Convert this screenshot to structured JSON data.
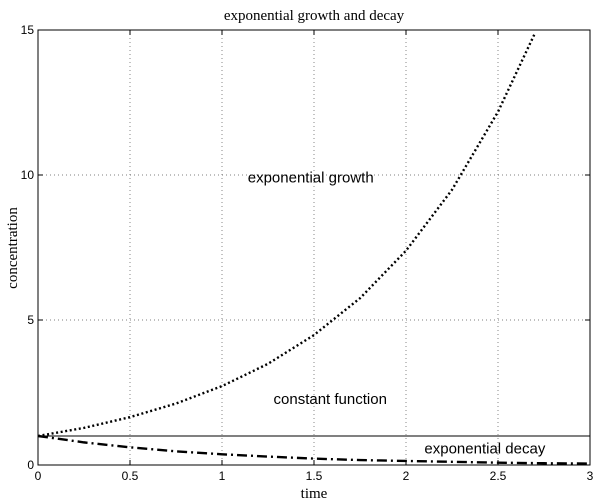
{
  "chart_data": {
    "type": "line",
    "title": "exponential growth and decay",
    "xlabel": "time",
    "ylabel": "concentration",
    "xlim": [
      0,
      3
    ],
    "ylim": [
      0,
      15
    ],
    "x_ticks": [
      0,
      0.5,
      1,
      1.5,
      2,
      2.5,
      3
    ],
    "x_tick_labels": [
      "0",
      "0.5",
      "1",
      "1.5",
      "2",
      "2.5",
      "3"
    ],
    "y_ticks": [
      0,
      5,
      10,
      15
    ],
    "y_tick_labels": [
      "0",
      "5",
      "10",
      "15"
    ],
    "grid": true,
    "series": [
      {
        "style": "dotted",
        "color": "#000000",
        "x": [
          0,
          0.25,
          0.5,
          0.75,
          1,
          1.25,
          1.5,
          1.75,
          2,
          2.25,
          2.5,
          2.7
        ],
        "values": [
          1,
          1.28,
          1.65,
          2.12,
          2.72,
          3.49,
          4.48,
          5.75,
          7.39,
          9.49,
          12.18,
          14.88
        ]
      },
      {
        "style": "solid",
        "color": "#000000",
        "x": [
          0,
          3
        ],
        "values": [
          1,
          1
        ]
      },
      {
        "style": "dashdot",
        "color": "#000000",
        "x": [
          0,
          0.25,
          0.5,
          0.75,
          1,
          1.25,
          1.5,
          1.75,
          2,
          2.25,
          2.5,
          2.75,
          3
        ],
        "values": [
          1,
          0.78,
          0.61,
          0.47,
          0.37,
          0.29,
          0.22,
          0.17,
          0.14,
          0.11,
          0.08,
          0.06,
          0.05
        ]
      }
    ],
    "annotations": [
      {
        "text": "exponential growth",
        "x": 1.14,
        "y": 9.75
      },
      {
        "text": "constant function",
        "x": 1.28,
        "y": 2.1
      },
      {
        "text": "exponential decay",
        "x": 2.1,
        "y": 0.4
      }
    ]
  }
}
